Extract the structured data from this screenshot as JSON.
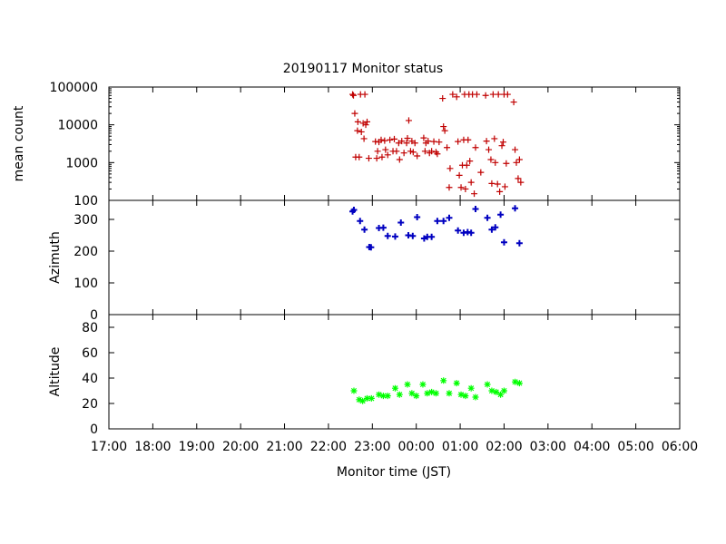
{
  "chart_data": {
    "type": "scatter",
    "title": "20190117 Monitor status",
    "xlabel": "Monitor time (JST)",
    "x_ticks": [
      "17:00",
      "18:00",
      "19:00",
      "20:00",
      "21:00",
      "22:00",
      "23:00",
      "00:00",
      "01:00",
      "02:00",
      "03:00",
      "04:00",
      "05:00",
      "06:00"
    ],
    "x_range_hours": [
      17,
      30
    ],
    "grid": false,
    "panels": [
      {
        "id": "mean-count",
        "ylabel": "mean count",
        "scale": "log",
        "ylim": [
          100,
          100000
        ],
        "y_ticks": [
          "100",
          "1000",
          "10000",
          "100000"
        ],
        "y_tick_values": [
          100,
          1000,
          10000,
          100000
        ],
        "color": "#c00000",
        "marker": "plus",
        "points": [
          [
            22.55,
            64000
          ],
          [
            22.57,
            60000
          ],
          [
            22.6,
            20000
          ],
          [
            22.62,
            1400
          ],
          [
            22.66,
            7000
          ],
          [
            22.67,
            12000
          ],
          [
            22.7,
            1400
          ],
          [
            22.73,
            64000
          ],
          [
            22.75,
            6500
          ],
          [
            22.79,
            11000
          ],
          [
            22.81,
            4300
          ],
          [
            22.83,
            64000
          ],
          [
            22.85,
            10000
          ],
          [
            22.88,
            12000
          ],
          [
            22.92,
            1300
          ],
          [
            23.07,
            3600
          ],
          [
            23.1,
            1300
          ],
          [
            23.12,
            2000
          ],
          [
            23.15,
            3500
          ],
          [
            23.2,
            4000
          ],
          [
            23.22,
            1400
          ],
          [
            23.28,
            3800
          ],
          [
            23.3,
            2200
          ],
          [
            23.35,
            1600
          ],
          [
            23.4,
            4000
          ],
          [
            23.47,
            2000
          ],
          [
            23.5,
            4200
          ],
          [
            23.55,
            2000
          ],
          [
            23.6,
            3300
          ],
          [
            23.62,
            1200
          ],
          [
            23.67,
            3700
          ],
          [
            23.72,
            1800
          ],
          [
            23.78,
            3300
          ],
          [
            23.8,
            4400
          ],
          [
            23.83,
            13000
          ],
          [
            23.87,
            2000
          ],
          [
            23.9,
            3700
          ],
          [
            23.93,
            1900
          ],
          [
            23.97,
            3300
          ],
          [
            24.02,
            1500
          ],
          [
            24.17,
            4500
          ],
          [
            24.2,
            2000
          ],
          [
            24.22,
            3300
          ],
          [
            24.27,
            3700
          ],
          [
            24.3,
            1800
          ],
          [
            24.35,
            2000
          ],
          [
            24.4,
            3600
          ],
          [
            24.45,
            1900
          ],
          [
            24.48,
            1700
          ],
          [
            24.52,
            3500
          ],
          [
            24.6,
            50000
          ],
          [
            24.62,
            9000
          ],
          [
            24.65,
            7000
          ],
          [
            24.7,
            2500
          ],
          [
            24.75,
            220
          ],
          [
            24.77,
            700
          ],
          [
            24.83,
            64000
          ],
          [
            24.92,
            55000
          ],
          [
            24.95,
            3600
          ],
          [
            24.98,
            460
          ],
          [
            25.02,
            220
          ],
          [
            25.05,
            850
          ],
          [
            25.08,
            4000
          ],
          [
            25.1,
            64000
          ],
          [
            25.12,
            200
          ],
          [
            25.15,
            850
          ],
          [
            25.18,
            4000
          ],
          [
            25.2,
            64000
          ],
          [
            25.22,
            1100
          ],
          [
            25.25,
            300
          ],
          [
            25.28,
            64000
          ],
          [
            25.32,
            150
          ],
          [
            25.35,
            2500
          ],
          [
            25.38,
            64000
          ],
          [
            25.47,
            550
          ],
          [
            25.58,
            60000
          ],
          [
            25.6,
            3700
          ],
          [
            25.65,
            2200
          ],
          [
            25.7,
            1200
          ],
          [
            25.72,
            280
          ],
          [
            25.75,
            64000
          ],
          [
            25.78,
            4300
          ],
          [
            25.8,
            1000
          ],
          [
            25.85,
            270
          ],
          [
            25.87,
            64000
          ],
          [
            25.9,
            170
          ],
          [
            25.95,
            2800
          ],
          [
            25.98,
            3500
          ],
          [
            26.0,
            64000
          ],
          [
            26.02,
            230
          ],
          [
            26.05,
            950
          ],
          [
            26.08,
            64000
          ],
          [
            26.22,
            40000
          ],
          [
            26.25,
            2200
          ],
          [
            26.28,
            1000
          ],
          [
            26.32,
            380
          ],
          [
            26.35,
            1200
          ],
          [
            26.38,
            300
          ]
        ]
      },
      {
        "id": "azimuth",
        "ylabel": "Azimuth",
        "scale": "linear",
        "ylim": [
          0,
          360
        ],
        "y_ticks": [
          "0",
          "100",
          "200",
          "300"
        ],
        "y_tick_values": [
          0,
          100,
          200,
          300
        ],
        "color": "#0000c0",
        "marker": "plus",
        "points": [
          [
            22.55,
            325
          ],
          [
            22.58,
            330
          ],
          [
            22.72,
            295
          ],
          [
            22.82,
            268
          ],
          [
            22.93,
            213
          ],
          [
            22.97,
            212
          ],
          [
            23.15,
            273
          ],
          [
            23.25,
            274
          ],
          [
            23.35,
            248
          ],
          [
            23.52,
            246
          ],
          [
            23.65,
            290
          ],
          [
            23.82,
            250
          ],
          [
            23.92,
            248
          ],
          [
            24.02,
            307
          ],
          [
            24.18,
            240
          ],
          [
            24.25,
            245
          ],
          [
            24.35,
            245
          ],
          [
            24.48,
            295
          ],
          [
            24.62,
            295
          ],
          [
            24.75,
            305
          ],
          [
            24.95,
            265
          ],
          [
            25.08,
            258
          ],
          [
            25.17,
            260
          ],
          [
            25.25,
            258
          ],
          [
            25.35,
            333
          ],
          [
            25.62,
            305
          ],
          [
            25.72,
            268
          ],
          [
            25.8,
            275
          ],
          [
            25.92,
            315
          ],
          [
            26.0,
            228
          ],
          [
            26.25,
            335
          ],
          [
            26.35,
            225
          ]
        ]
      },
      {
        "id": "altitude",
        "ylabel": "Altitude",
        "scale": "linear",
        "ylim": [
          0,
          90
        ],
        "y_ticks": [
          "0",
          "20",
          "40",
          "60",
          "80"
        ],
        "y_tick_values": [
          0,
          20,
          40,
          60,
          80
        ],
        "color": "#00ff00",
        "marker": "star",
        "points": [
          [
            22.58,
            30
          ],
          [
            22.7,
            23
          ],
          [
            22.78,
            22
          ],
          [
            22.88,
            24
          ],
          [
            22.98,
            24
          ],
          [
            23.15,
            27
          ],
          [
            23.25,
            26
          ],
          [
            23.35,
            26
          ],
          [
            23.52,
            32
          ],
          [
            23.62,
            27
          ],
          [
            23.8,
            35
          ],
          [
            23.9,
            28
          ],
          [
            24.0,
            26
          ],
          [
            24.15,
            35
          ],
          [
            24.25,
            28
          ],
          [
            24.35,
            29
          ],
          [
            24.45,
            28
          ],
          [
            24.62,
            38
          ],
          [
            24.75,
            28
          ],
          [
            24.92,
            36
          ],
          [
            25.02,
            27
          ],
          [
            25.12,
            26
          ],
          [
            25.25,
            32
          ],
          [
            25.35,
            25
          ],
          [
            25.62,
            35
          ],
          [
            25.72,
            30
          ],
          [
            25.82,
            29
          ],
          [
            25.92,
            27
          ],
          [
            26.0,
            30
          ],
          [
            26.25,
            37
          ],
          [
            26.35,
            36
          ]
        ]
      }
    ]
  }
}
